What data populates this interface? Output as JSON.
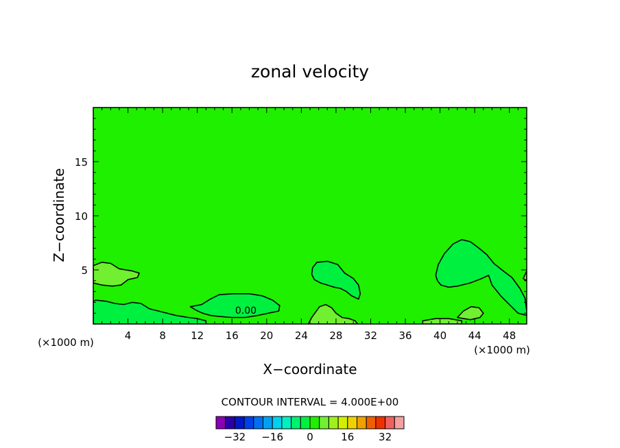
{
  "chart_data": {
    "type": "contour",
    "title": "zonal velocity",
    "xlabel": "X−coordinate",
    "ylabel": "Z−coordinate",
    "x_unit_left": "(×1000 m)",
    "x_unit_right": "(×1000 m)",
    "xlim": [
      0,
      50
    ],
    "ylim": [
      0,
      20
    ],
    "x_ticks": [
      4,
      8,
      12,
      16,
      20,
      24,
      28,
      32,
      36,
      40,
      44,
      48
    ],
    "y_ticks": [
      5,
      10,
      15
    ],
    "contour_interval_text": "CONTOUR INTERVAL = 4.000E+00",
    "contour_label": "0.00",
    "colorbar": {
      "levels": [
        -36,
        -32,
        -28,
        -24,
        -20,
        -16,
        -12,
        -8,
        -4,
        0,
        4,
        8,
        12,
        16,
        20,
        24,
        28,
        32,
        36
      ],
      "tick_labels": [
        "−32",
        "−16",
        "0",
        "16",
        "32"
      ],
      "tick_values": [
        -32,
        -16,
        0,
        16,
        32
      ],
      "colors": [
        "#8a00b4",
        "#2a00a8",
        "#0018c8",
        "#0040e8",
        "#0070f0",
        "#00a0f0",
        "#00d0f0",
        "#00f0c0",
        "#00f070",
        "#00f040",
        "#1ef000",
        "#70f030",
        "#a0f020",
        "#d0f000",
        "#f0d000",
        "#f0a000",
        "#f06000",
        "#f03000",
        "#f06060",
        "#f4a0a0"
      ]
    },
    "background_color": "#1ef000",
    "field_colors": {
      "weak_negative": "#00f040",
      "weak_positive": "#70f030",
      "positive": "#a0f020"
    },
    "regions": [
      {
        "sign": "negative",
        "color": "weak_negative",
        "polygon": [
          [
            0.3,
            2.2
          ],
          [
            1.5,
            2.1
          ],
          [
            2.5,
            1.9
          ],
          [
            3.5,
            1.8
          ],
          [
            4.5,
            2.0
          ],
          [
            5.5,
            1.9
          ],
          [
            6.5,
            1.4
          ],
          [
            7.5,
            1.2
          ],
          [
            9.5,
            0.8
          ],
          [
            11,
            0.6
          ],
          [
            12,
            0.5
          ],
          [
            13,
            0.3
          ],
          [
            13,
            0
          ],
          [
            0,
            0
          ],
          [
            0,
            2.1
          ]
        ]
      },
      {
        "sign": "negative",
        "color": "weak_negative",
        "polygon": [
          [
            11.2,
            1.6
          ],
          [
            12.5,
            1.8
          ],
          [
            13.5,
            2.3
          ],
          [
            14.5,
            2.7
          ],
          [
            16,
            2.8
          ],
          [
            18,
            2.8
          ],
          [
            19.5,
            2.6
          ],
          [
            20.7,
            2.2
          ],
          [
            21.5,
            1.7
          ],
          [
            21.4,
            1.2
          ],
          [
            20.2,
            1.0
          ],
          [
            19,
            0.8
          ],
          [
            17.5,
            0.6
          ],
          [
            16,
            0.6
          ],
          [
            14.5,
            0.7
          ],
          [
            13.5,
            0.8
          ],
          [
            12.6,
            1.0
          ],
          [
            11.8,
            1.3
          ]
        ]
      },
      {
        "sign": "negative",
        "color": "weak_negative",
        "polygon": [
          [
            25.3,
            5.2
          ],
          [
            25.8,
            5.7
          ],
          [
            27,
            5.8
          ],
          [
            28.2,
            5.5
          ],
          [
            29,
            4.7
          ],
          [
            30,
            4.2
          ],
          [
            30.6,
            3.6
          ],
          [
            30.8,
            2.8
          ],
          [
            30.6,
            2.3
          ],
          [
            29.8,
            2.6
          ],
          [
            29.2,
            3.0
          ],
          [
            28.5,
            3.3
          ],
          [
            27.8,
            3.4
          ],
          [
            27,
            3.6
          ],
          [
            26.2,
            3.8
          ],
          [
            25.5,
            4.1
          ],
          [
            25.2,
            4.6
          ]
        ]
      },
      {
        "sign": "negative",
        "color": "weak_negative",
        "polygon": [
          [
            39.5,
            4.5
          ],
          [
            39.8,
            5.5
          ],
          [
            40.5,
            6.5
          ],
          [
            41.5,
            7.4
          ],
          [
            42.5,
            7.8
          ],
          [
            43.5,
            7.6
          ],
          [
            44.5,
            7.0
          ],
          [
            45.4,
            6.4
          ],
          [
            46.2,
            5.6
          ],
          [
            47.3,
            4.9
          ],
          [
            48.3,
            4.3
          ],
          [
            49.2,
            3.3
          ],
          [
            49.8,
            2.4
          ],
          [
            50,
            1.2
          ],
          [
            50,
            0.8
          ],
          [
            49,
            1.0
          ],
          [
            48,
            1.8
          ],
          [
            47,
            2.6
          ],
          [
            46,
            3.6
          ],
          [
            45.6,
            4.5
          ],
          [
            44.8,
            4.2
          ],
          [
            43.5,
            3.8
          ],
          [
            42,
            3.5
          ],
          [
            41,
            3.4
          ],
          [
            40.1,
            3.6
          ],
          [
            39.7,
            4.0
          ]
        ]
      },
      {
        "sign": "positive",
        "color": "weak_positive",
        "polygon": [
          [
            0,
            5.4
          ],
          [
            1,
            5.7
          ],
          [
            2,
            5.6
          ],
          [
            3,
            5.1
          ],
          [
            4.5,
            4.9
          ],
          [
            5.3,
            4.7
          ],
          [
            5.1,
            4.3
          ],
          [
            4,
            4.1
          ],
          [
            3.2,
            3.6
          ],
          [
            2.2,
            3.5
          ],
          [
            1,
            3.6
          ],
          [
            0,
            3.8
          ]
        ]
      },
      {
        "sign": "positive",
        "color": "weak_positive",
        "polygon": [
          [
            24.8,
            0
          ],
          [
            25.2,
            0.6
          ],
          [
            26.1,
            1.6
          ],
          [
            26.8,
            1.8
          ],
          [
            27.5,
            1.5
          ],
          [
            28,
            1.0
          ],
          [
            28.7,
            0.6
          ],
          [
            29.5,
            0.5
          ],
          [
            30.2,
            0.3
          ],
          [
            30.5,
            0
          ]
        ]
      },
      {
        "sign": "positive",
        "color": "weak_positive",
        "polygon": [
          [
            42,
            0.6
          ],
          [
            42.7,
            1.2
          ],
          [
            43.6,
            1.6
          ],
          [
            44.5,
            1.5
          ],
          [
            45,
            1.0
          ],
          [
            44.6,
            0.6
          ],
          [
            43.5,
            0.4
          ]
        ]
      },
      {
        "sign": "positive",
        "color": "weak_positive",
        "polygon": [
          [
            49.6,
            4.2
          ],
          [
            50,
            4.9
          ],
          [
            50,
            4.0
          ]
        ]
      },
      {
        "sign": "positive",
        "color": "weak_positive",
        "polygon": [
          [
            38,
            0.3
          ],
          [
            39.5,
            0.5
          ],
          [
            41,
            0.5
          ],
          [
            42.5,
            0.3
          ],
          [
            42.5,
            0
          ],
          [
            38,
            0
          ]
        ]
      }
    ],
    "zero_label_position": [
      17.6,
      0.7
    ]
  }
}
